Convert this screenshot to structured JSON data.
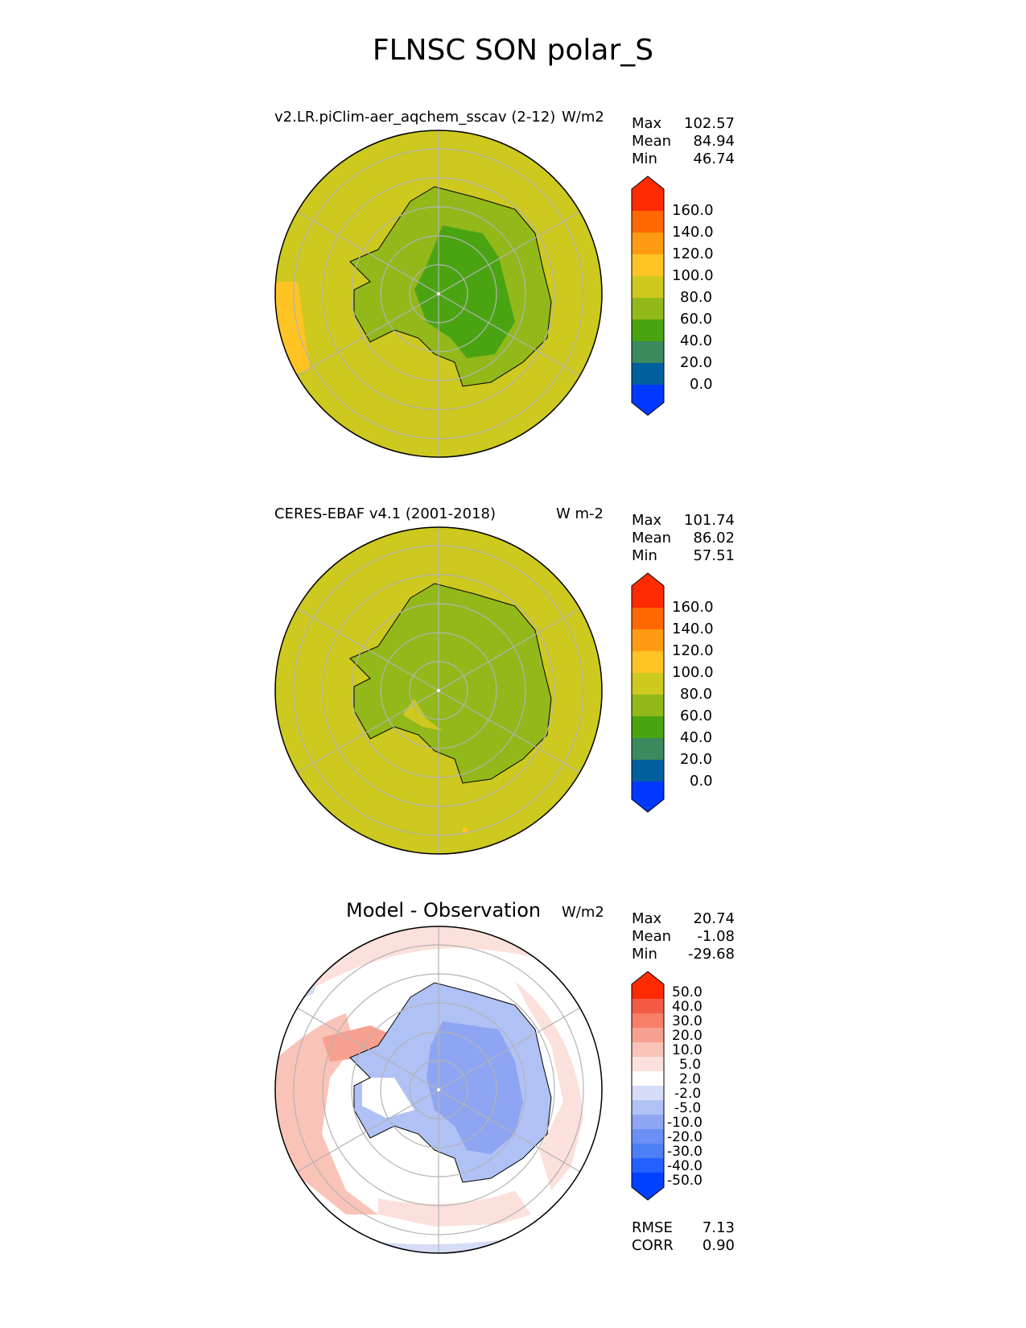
{
  "title": "FLNSC SON polar_S",
  "colors": {
    "abs_cmap": [
      "#0038ff",
      "#00609e",
      "#3a8a5e",
      "#4aa412",
      "#92b81a",
      "#cdc91e",
      "#ffc323",
      "#ff9b12",
      "#ff6700",
      "#ff2b00"
    ],
    "diff_cmap": [
      "#0040ff",
      "#2360ff",
      "#4d7ff5",
      "#6c8ff5",
      "#8ea5f3",
      "#b0c1f5",
      "#d5dcf7",
      "#ffffff",
      "#fce0db",
      "#fac3b8",
      "#f8a08f",
      "#f77f6a",
      "#f35b44",
      "#ff2b00"
    ],
    "grid": "#b3b3b3"
  },
  "panels": [
    {
      "title": "v2.LR.piClim-aer_aqchem_sscav (2-12)",
      "units": "W/m2",
      "stats": {
        "max_label": "Max",
        "max": "102.57",
        "mean_label": "Mean",
        "mean": "84.94",
        "min_label": "Min",
        "min": "46.74"
      },
      "colorbar_ticks": [
        "160.0",
        "140.0",
        "120.0",
        "100.0",
        "80.0",
        "60.0",
        "40.0",
        "20.0",
        "0.0"
      ]
    },
    {
      "title": "CERES-EBAF v4.1 (2001-2018)",
      "units": "W m-2",
      "stats": {
        "max_label": "Max",
        "max": "101.74",
        "mean_label": "Mean",
        "mean": "86.02",
        "min_label": "Min",
        "min": "57.51"
      },
      "colorbar_ticks": [
        "160.0",
        "140.0",
        "120.0",
        "100.0",
        "80.0",
        "60.0",
        "40.0",
        "20.0",
        "0.0"
      ]
    },
    {
      "title": "Model - Observation",
      "units": "W/m2",
      "stats": {
        "max_label": "Max",
        "max": "20.74",
        "mean_label": "Mean",
        "mean": "-1.08",
        "min_label": "Min",
        "min": "-29.68"
      },
      "colorbar_ticks": [
        "50.0",
        "40.0",
        "30.0",
        "20.0",
        "10.0",
        "5.0",
        "2.0",
        "-2.0",
        "-5.0",
        "-10.0",
        "-20.0",
        "-30.0",
        "-40.0",
        "-50.0"
      ],
      "metrics": {
        "rmse_label": "RMSE",
        "rmse": "7.13",
        "corr_label": "CORR",
        "corr": "0.90"
      }
    }
  ]
}
